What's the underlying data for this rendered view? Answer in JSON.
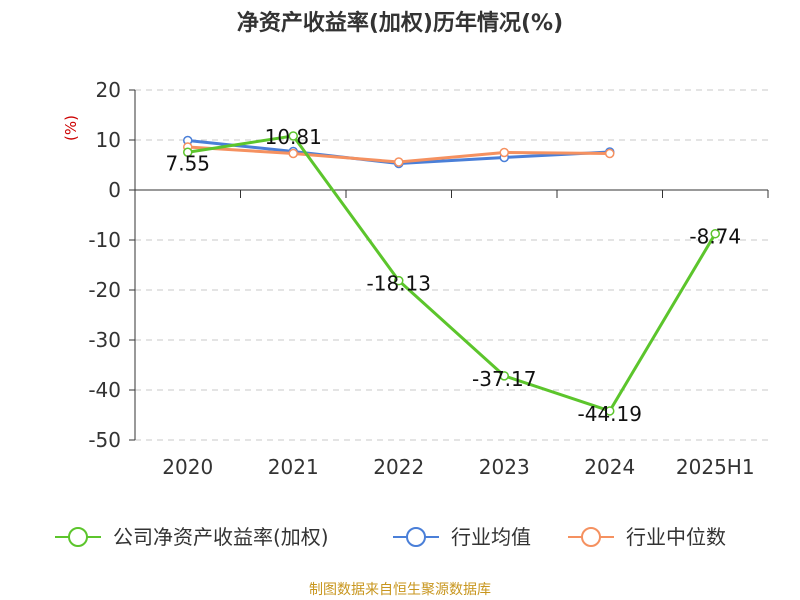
{
  "title": "净资产收益率(加权)历年情况(%)",
  "source": "制图数据来自恒生聚源数据库",
  "chart_data": {
    "type": "line",
    "title": "净资产收益率(加权)历年情况(%)",
    "ylabel": "(%)",
    "xlabel": "",
    "ylim": [
      -50,
      20
    ],
    "yticks": [
      20,
      10,
      0,
      -10,
      -20,
      -30,
      -40,
      -50
    ],
    "grid": true,
    "legend": "bottom",
    "categories": [
      "2020",
      "2021",
      "2022",
      "2023",
      "2024",
      "2025H1"
    ],
    "series": [
      {
        "name": "公司净资产收益率(加权)",
        "color": "#5cc52c",
        "values": [
          7.55,
          10.81,
          -18.13,
          -37.17,
          -44.19,
          -8.74
        ],
        "labels": [
          "7.55",
          "10.81",
          "-18.13",
          "-37.17",
          "-44.19",
          "-8.74"
        ]
      },
      {
        "name": "行业均值",
        "color": "#4a7fd8",
        "values": [
          9.9,
          7.7,
          5.3,
          6.5,
          7.6,
          null
        ]
      },
      {
        "name": "行业中位数",
        "color": "#f59160",
        "values": [
          8.6,
          7.3,
          5.6,
          7.5,
          7.3,
          null
        ]
      }
    ]
  }
}
